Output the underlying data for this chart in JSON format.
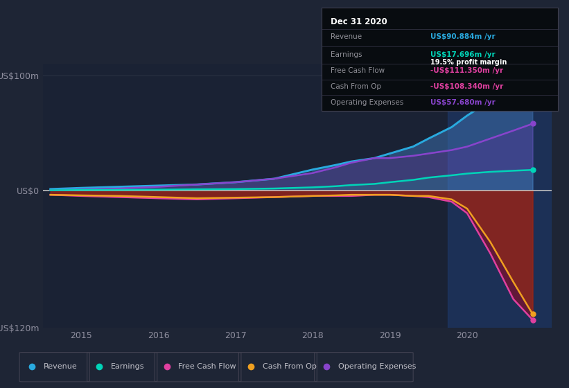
{
  "bg_color": "#1e2535",
  "chart_bg": "#1a2234",
  "years": [
    2014.6,
    2015.0,
    2015.5,
    2016.0,
    2016.5,
    2017.0,
    2017.5,
    2018.0,
    2018.3,
    2018.5,
    2018.8,
    2019.0,
    2019.3,
    2019.5,
    2019.8,
    2020.0,
    2020.3,
    2020.6,
    2020.85
  ],
  "revenue": [
    1,
    2,
    3,
    4,
    5,
    7,
    10,
    18,
    22,
    25,
    28,
    32,
    38,
    45,
    55,
    65,
    78,
    87,
    91
  ],
  "earnings": [
    0,
    0.2,
    0.3,
    0.5,
    0.8,
    1.0,
    1.5,
    2.5,
    3.5,
    4.5,
    5.5,
    7,
    9,
    11,
    13,
    14.5,
    16,
    17,
    17.7
  ],
  "free_cash_flow": [
    -4,
    -5,
    -6,
    -7,
    -8,
    -7,
    -6,
    -5,
    -5,
    -5,
    -4,
    -4,
    -5,
    -6,
    -10,
    -20,
    -55,
    -95,
    -113
  ],
  "cash_from_op": [
    -4,
    -4.5,
    -5,
    -6,
    -7,
    -6.5,
    -6,
    -5,
    -4.5,
    -4,
    -4,
    -4,
    -5,
    -5,
    -8,
    -16,
    -45,
    -80,
    -108
  ],
  "op_expenses": [
    0,
    0.5,
    1.5,
    3,
    5,
    7,
    10,
    15,
    20,
    24,
    28,
    28,
    30,
    32,
    35,
    38,
    45,
    52,
    58
  ],
  "revenue_color": "#29aadf",
  "earnings_color": "#00d4b8",
  "fcf_color": "#e040a0",
  "cash_from_op_color": "#f0a020",
  "op_exp_color": "#8844cc",
  "highlight_x_start": 2019.75,
  "highlight_x_end": 2021.1,
  "ylim": [
    -120,
    110
  ],
  "ytick_positions": [
    -120,
    0,
    100
  ],
  "ytick_labels": [
    "-US$120m",
    "US$0",
    "US$100m"
  ],
  "xticks": [
    2015,
    2016,
    2017,
    2018,
    2019,
    2020
  ],
  "xlim_start": 2014.5,
  "xlim_end": 2021.1,
  "title_box": {
    "date": "Dec 31 2020",
    "revenue_label": "Revenue",
    "revenue_val": "US$90.884m",
    "earnings_label": "Earnings",
    "earnings_val": "US$17.696m",
    "profit_margin": "19.5%",
    "fcf_label": "Free Cash Flow",
    "fcf_val": "-US$111.350m",
    "cash_op_label": "Cash From Op",
    "cash_op_val": "-US$108.340m",
    "op_exp_label": "Operating Expenses",
    "op_exp_val": "US$57.680m"
  },
  "legend_items": [
    "Revenue",
    "Earnings",
    "Free Cash Flow",
    "Cash From Op",
    "Operating Expenses"
  ],
  "legend_colors": [
    "#29aadf",
    "#00d4b8",
    "#e040a0",
    "#f0a020",
    "#8844cc"
  ]
}
